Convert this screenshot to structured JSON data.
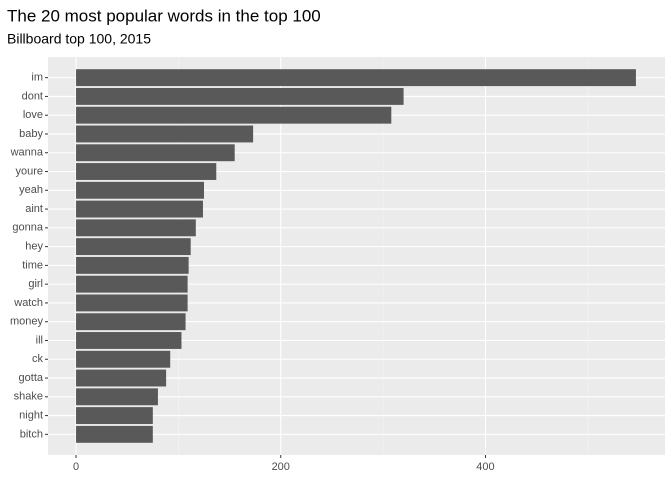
{
  "chart_data": {
    "type": "hbar",
    "title": "The 20 most popular words in the top 100",
    "subtitle": "Billboard top 100, 2015",
    "categories": [
      "im",
      "dont",
      "love",
      "baby",
      "wanna",
      "youre",
      "yeah",
      "aint",
      "gonna",
      "hey",
      "time",
      "girl",
      "watch",
      "money",
      "ill",
      "ck",
      "gotta",
      "shake",
      "night",
      "bitch"
    ],
    "values": [
      547,
      320,
      308,
      173,
      155,
      137,
      125,
      124,
      117,
      112,
      110,
      109,
      109,
      107,
      103,
      92,
      88,
      80,
      75,
      75
    ],
    "color": "#595959",
    "xlim": [
      -27.4,
      575.4
    ],
    "xticks": [
      0,
      200,
      400
    ],
    "minor_grid": [
      100,
      300,
      500
    ],
    "grid": true
  }
}
